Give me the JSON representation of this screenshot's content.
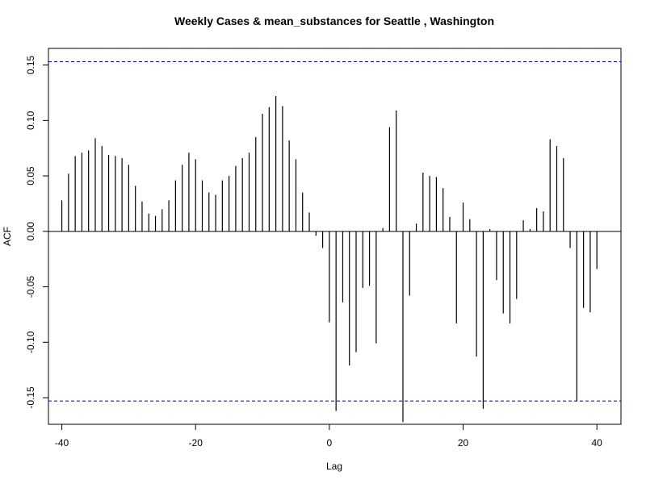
{
  "chart_data": {
    "type": "bar",
    "title": "Weekly Cases & mean_substances for Seattle , Washington",
    "xlabel": "Lag",
    "ylabel": "ACF",
    "xlim": [
      -42.0,
      43.6
    ],
    "ylim": [
      -0.174,
      0.165
    ],
    "xticks": [
      -40,
      -20,
      0,
      20,
      40
    ],
    "yticks": [
      -0.15,
      -0.1,
      -0.05,
      0.0,
      0.05,
      0.1,
      0.15
    ],
    "xtick_labels": [
      "-40",
      "-20",
      "0",
      "20",
      "40"
    ],
    "ytick_labels": [
      "-0.15",
      "-0.10",
      "-0.05",
      "0.00",
      "0.05",
      "0.10",
      "0.15"
    ],
    "confidence_bound": 0.153,
    "grid": false,
    "colors": {
      "bars": "#000000",
      "confidence": "#0000CC",
      "zero_line": "#000000"
    },
    "x": [
      -40,
      -39,
      -38,
      -37,
      -36,
      -35,
      -34,
      -33,
      -32,
      -31,
      -30,
      -29,
      -28,
      -27,
      -26,
      -25,
      -24,
      -23,
      -22,
      -21,
      -20,
      -19,
      -18,
      -17,
      -16,
      -15,
      -14,
      -13,
      -12,
      -11,
      -10,
      -9,
      -8,
      -7,
      -6,
      -5,
      -4,
      -3,
      -2,
      -1,
      0,
      1,
      2,
      3,
      4,
      5,
      6,
      7,
      8,
      9,
      10,
      11,
      12,
      13,
      14,
      15,
      16,
      17,
      18,
      19,
      20,
      21,
      22,
      23,
      24,
      25,
      26,
      27,
      28,
      29,
      30,
      31,
      32,
      33,
      34,
      35,
      36,
      37,
      38,
      39,
      40
    ],
    "values": [
      0.028,
      0.052,
      0.068,
      0.071,
      0.073,
      0.084,
      0.077,
      0.069,
      0.068,
      0.066,
      0.06,
      0.041,
      0.027,
      0.016,
      0.014,
      0.02,
      0.028,
      0.046,
      0.06,
      0.071,
      0.065,
      0.046,
      0.035,
      0.033,
      0.046,
      0.05,
      0.059,
      0.066,
      0.071,
      0.085,
      0.106,
      0.112,
      0.122,
      0.113,
      0.082,
      0.065,
      0.035,
      0.017,
      -0.004,
      -0.015,
      -0.082,
      -0.162,
      -0.064,
      -0.121,
      -0.109,
      -0.051,
      -0.049,
      -0.101,
      0.003,
      0.094,
      0.109,
      -0.172,
      -0.058,
      0.007,
      0.053,
      0.05,
      0.049,
      0.039,
      0.013,
      -0.083,
      0.026,
      0.011,
      -0.113,
      -0.16,
      0.002,
      -0.044,
      -0.074,
      -0.083,
      -0.061,
      0.01,
      0.002,
      0.021,
      0.018,
      0.083,
      0.077,
      0.066,
      -0.015,
      -0.153,
      -0.069,
      -0.073,
      -0.034
    ]
  }
}
